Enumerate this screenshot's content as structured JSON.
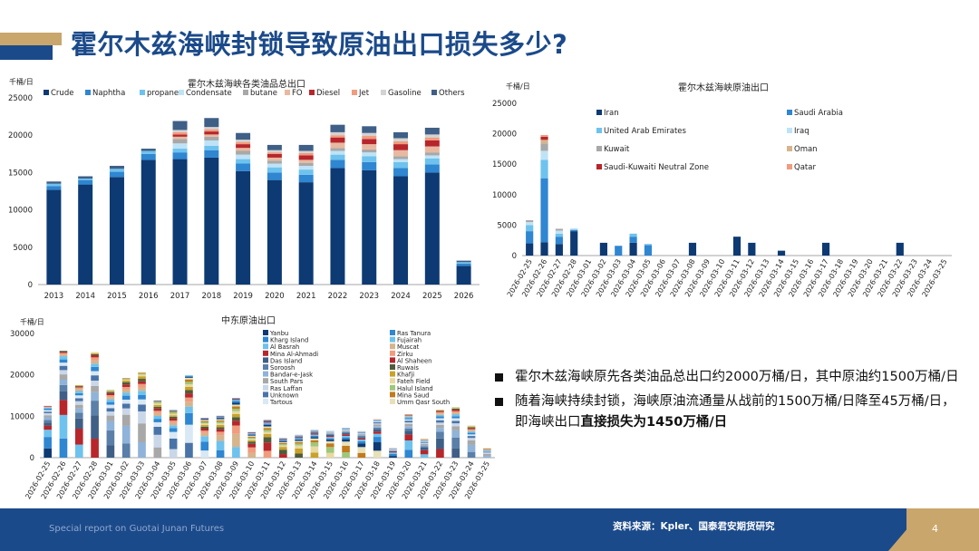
{
  "page": {
    "title": "霍尔木兹海峡封锁导致原油出口损失多少?",
    "footer_left": "Special report on Guotai Junan Futures",
    "footer_source": "资料来源：Kpler、国泰君安期货研究",
    "page_number": "4"
  },
  "bullets": [
    {
      "text": "霍尔木兹海峡原先各类油品总出口约2000万桶/日，其中原油约1500万桶/日",
      "bold": ""
    },
    {
      "text": "随着海峡持续封锁，海峡原油流通量从战前的1500万桶/日降至45万桶/日，即海峡出口",
      "bold": "直接损失为1450万桶/日"
    }
  ],
  "chart_data": [
    {
      "type": "bar",
      "stacked": true,
      "title": "霍尔木兹海峡各类油品总出口",
      "unit": "千桶/日",
      "ylim": [
        0,
        25000
      ],
      "yticks": [
        "0",
        "5000",
        "10000",
        "15000",
        "20000",
        "25000"
      ],
      "categories": [
        "2013",
        "2014",
        "2015",
        "2016",
        "2017",
        "2018",
        "2019",
        "2020",
        "2021",
        "2022",
        "2023",
        "2024",
        "2025",
        "2026"
      ],
      "series": [
        {
          "name": "Crude",
          "color": "#0d3a73",
          "values": [
            12700,
            13400,
            14400,
            16700,
            16800,
            17000,
            15200,
            14000,
            13700,
            15600,
            15300,
            14500,
            15000,
            2500
          ]
        },
        {
          "name": "Naphtha",
          "color": "#2f86d1",
          "values": [
            500,
            600,
            700,
            800,
            900,
            1000,
            1000,
            1000,
            1000,
            1100,
            1100,
            1100,
            1100,
            300
          ]
        },
        {
          "name": "propane",
          "color": "#6ec2ee",
          "values": [
            300,
            200,
            400,
            400,
            500,
            600,
            600,
            700,
            700,
            700,
            800,
            800,
            800,
            200
          ]
        },
        {
          "name": "Condensate",
          "color": "#bfe3f6",
          "values": [
            0,
            0,
            0,
            0,
            700,
            700,
            600,
            500,
            500,
            500,
            500,
            400,
            400,
            0
          ]
        },
        {
          "name": "butane",
          "color": "#a8a8a8",
          "values": [
            0,
            0,
            0,
            0,
            600,
            500,
            500,
            400,
            400,
            400,
            400,
            400,
            400,
            0
          ]
        },
        {
          "name": "FO",
          "color": "#e8b9a0",
          "values": [
            0,
            0,
            0,
            0,
            300,
            300,
            400,
            400,
            400,
            700,
            700,
            800,
            800,
            0
          ]
        },
        {
          "name": "Diesel",
          "color": "#b7262b",
          "values": [
            0,
            0,
            0,
            0,
            300,
            400,
            500,
            500,
            600,
            700,
            700,
            800,
            800,
            0
          ]
        },
        {
          "name": "Jet",
          "color": "#f09c7f",
          "values": [
            0,
            0,
            0,
            0,
            300,
            300,
            300,
            200,
            300,
            300,
            400,
            400,
            400,
            0
          ]
        },
        {
          "name": "Gasoline",
          "color": "#d3d3d3",
          "values": [
            0,
            0,
            0,
            0,
            300,
            300,
            300,
            300,
            300,
            400,
            400,
            400,
            400,
            0
          ]
        },
        {
          "name": "Others",
          "color": "#3f5f86",
          "values": [
            300,
            300,
            400,
            300,
            1200,
            1200,
            900,
            700,
            800,
            1000,
            900,
            800,
            900,
            200
          ]
        }
      ]
    },
    {
      "type": "bar",
      "stacked": true,
      "title": "霍尔木兹海峡原油出口",
      "unit": "千桶/日",
      "ylim": [
        0,
        25000
      ],
      "yticks": [
        "0",
        "5000",
        "10000",
        "15000",
        "20000",
        "25000"
      ],
      "categories": [
        "2026-02-25",
        "2026-02-26",
        "2026-02-27",
        "2026-02-28",
        "2026-03-01",
        "2026-03-02",
        "2026-03-03",
        "2026-03-04",
        "2026-03-05",
        "2026-03-06",
        "2026-03-07",
        "2026-03-08",
        "2026-03-09",
        "2026-03-10",
        "2026-03-11",
        "2026-03-12",
        "2026-03-13",
        "2026-03-14",
        "2026-03-15",
        "2026-03-16",
        "2026-03-17",
        "2026-03-18",
        "2026-03-19",
        "2026-03-20",
        "2026-03-21",
        "2026-03-22",
        "2026-03-23",
        "2026-03-24",
        "2026-03-25"
      ],
      "series": [
        {
          "name": "Iran",
          "color": "#0d3a73",
          "values": [
            2000,
            2200,
            1900,
            4000,
            0,
            2100,
            0,
            2100,
            0,
            0,
            0,
            2100,
            0,
            0,
            3100,
            2100,
            0,
            800,
            0,
            0,
            2100,
            0,
            0,
            0,
            0,
            2100,
            0,
            0,
            0
          ]
        },
        {
          "name": "Saudi Arabia",
          "color": "#2f86d1",
          "values": [
            2000,
            10500,
            1200,
            200,
            0,
            0,
            1600,
            1000,
            1700,
            0,
            0,
            0,
            0,
            0,
            0,
            0,
            0,
            0,
            0,
            0,
            0,
            0,
            0,
            0,
            0,
            0,
            0,
            0,
            0
          ]
        },
        {
          "name": "United Arab Emirates",
          "color": "#6ec2ee",
          "values": [
            1000,
            3000,
            500,
            100,
            0,
            0,
            0,
            500,
            200,
            0,
            0,
            0,
            0,
            0,
            0,
            0,
            0,
            0,
            0,
            0,
            0,
            0,
            0,
            0,
            0,
            0,
            0,
            0,
            0
          ]
        },
        {
          "name": "Iraq",
          "color": "#bfe3f6",
          "values": [
            500,
            1500,
            500,
            200,
            0,
            0,
            0,
            0,
            0,
            0,
            0,
            0,
            0,
            0,
            0,
            0,
            0,
            0,
            0,
            0,
            0,
            0,
            0,
            0,
            0,
            0,
            0,
            0,
            0
          ]
        },
        {
          "name": "Kuwait",
          "color": "#a8a8a8",
          "values": [
            300,
            1200,
            300,
            0,
            0,
            0,
            0,
            0,
            0,
            0,
            0,
            0,
            0,
            0,
            0,
            0,
            0,
            0,
            0,
            0,
            0,
            0,
            0,
            0,
            0,
            0,
            0,
            0,
            0
          ]
        },
        {
          "name": "Oman",
          "color": "#d6b48c",
          "values": [
            0,
            600,
            0,
            0,
            0,
            0,
            0,
            0,
            0,
            0,
            0,
            0,
            0,
            0,
            0,
            0,
            0,
            0,
            0,
            0,
            0,
            0,
            0,
            0,
            0,
            0,
            0,
            0,
            0
          ]
        },
        {
          "name": "Saudi-Kuwaiti Neutral Zone",
          "color": "#b7262b",
          "values": [
            0,
            500,
            0,
            0,
            0,
            0,
            0,
            0,
            0,
            0,
            0,
            0,
            0,
            0,
            0,
            0,
            0,
            0,
            0,
            0,
            0,
            0,
            0,
            0,
            0,
            0,
            0,
            0,
            0
          ]
        },
        {
          "name": "Qatar",
          "color": "#f09c7f",
          "values": [
            0,
            300,
            0,
            0,
            0,
            0,
            0,
            0,
            0,
            0,
            0,
            0,
            0,
            0,
            0,
            0,
            0,
            0,
            0,
            0,
            0,
            0,
            0,
            0,
            0,
            0,
            0,
            0,
            0
          ]
        }
      ]
    },
    {
      "type": "bar",
      "stacked": true,
      "title": "中东原油出口",
      "unit": "千桶/日",
      "ylim": [
        0,
        30000
      ],
      "yticks": [
        "0",
        "10000",
        "20000",
        "30000"
      ],
      "categories": [
        "2026-02-25",
        "2026-02-26",
        "2026-02-27",
        "2026-02-28",
        "2026-03-01",
        "2026-03-02",
        "2026-03-03",
        "2026-03-04",
        "2026-03-05",
        "2026-03-06",
        "2026-03-07",
        "2026-03-08",
        "2026-03-09",
        "2026-03-10",
        "2026-03-11",
        "2026-03-12",
        "2026-03-13",
        "2026-03-14",
        "2026-03-15",
        "2026-03-16",
        "2026-03-17",
        "2026-03-18",
        "2026-03-19",
        "2026-03-20",
        "2026-03-21",
        "2026-03-22",
        "2026-03-23",
        "2026-03-24",
        "2026-03-25"
      ],
      "totals": [
        12500,
        25800,
        17500,
        25500,
        16400,
        19200,
        20700,
        13800,
        11500,
        19900,
        9600,
        10100,
        14400,
        6200,
        9200,
        4800,
        5500,
        6800,
        6400,
        7200,
        6400,
        9300,
        2300,
        10400,
        4500,
        11600,
        12200,
        7700,
        2300
      ],
      "series": [
        {
          "name": "Yanbu",
          "color": "#0d3a73"
        },
        {
          "name": "Kharg Island",
          "color": "#2f86d1"
        },
        {
          "name": "Al Basrah",
          "color": "#6ec2ee"
        },
        {
          "name": "Mina Al-Ahmadi",
          "color": "#b7262b"
        },
        {
          "name": "Das Island",
          "color": "#3f5f86"
        },
        {
          "name": "Soroosh",
          "color": "#5a7fa8"
        },
        {
          "name": "Bandar-e-Jask",
          "color": "#8fb3d9"
        },
        {
          "name": "South Pars",
          "color": "#a8a8a8"
        },
        {
          "name": "Ras Laffan",
          "color": "#c9d7e8"
        },
        {
          "name": "Unknown",
          "color": "#4a74a8"
        },
        {
          "name": "Tartous",
          "color": "#d8e8f5"
        },
        {
          "name": "Ras Tanura",
          "color": "#2f86d1"
        },
        {
          "name": "Fujairah",
          "color": "#6ec2ee"
        },
        {
          "name": "Muscat",
          "color": "#d6b48c"
        },
        {
          "name": "Zirku",
          "color": "#f09c7f"
        },
        {
          "name": "Al Shaheen",
          "color": "#b7262b"
        },
        {
          "name": "Ruwais",
          "color": "#4f5b3a"
        },
        {
          "name": "Khafji",
          "color": "#c9a22a"
        },
        {
          "name": "Fateh Field",
          "color": "#e8d9a0"
        },
        {
          "name": "Halul Island",
          "color": "#9fc77a"
        },
        {
          "name": "Mina Saud",
          "color": "#c27a1c"
        },
        {
          "name": "Umm Qasr South",
          "color": "#e8e0b8"
        }
      ]
    }
  ]
}
